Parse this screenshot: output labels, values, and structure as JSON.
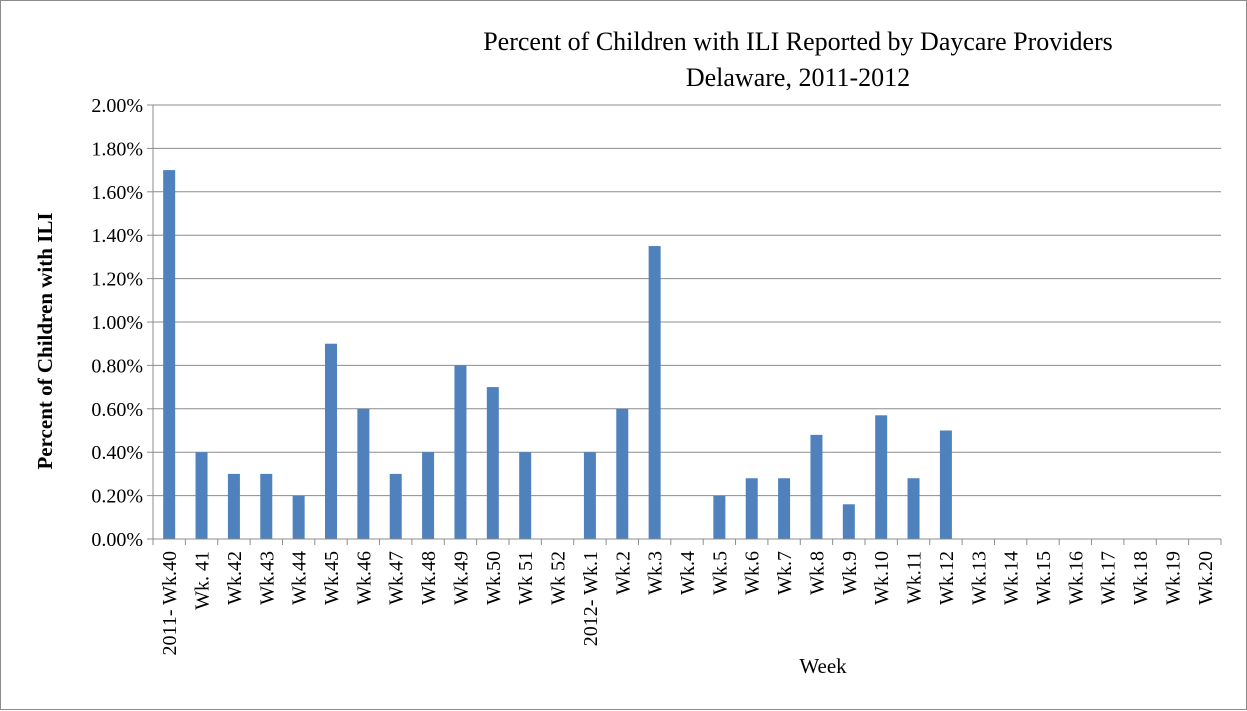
{
  "chart_data": {
    "type": "bar",
    "title": "Percent of Children with ILI Reported by Daycare Providers",
    "subtitle": "Delaware, 2011-2012",
    "xlabel": "Week",
    "ylabel": "Percent of Children  with ILI",
    "ylim": [
      0,
      2.0
    ],
    "ytick_step": 0.2,
    "value_format": "percent_2dp",
    "grid": true,
    "legend": "none",
    "bar_color": "#4f81bd",
    "gridline_color": "#8c8c8c",
    "categories": [
      "2011- Wk.40",
      "Wk. 41",
      "Wk.42",
      "Wk.43",
      "Wk.44",
      "Wk.45",
      "Wk.46",
      "Wk.47",
      "Wk.48",
      "Wk.49",
      "Wk.50",
      "Wk 51",
      "Wk 52",
      "2012- Wk.1",
      "Wk.2",
      "Wk.3",
      "Wk.4",
      "Wk.5",
      "Wk.6",
      "Wk.7",
      "Wk.8",
      "Wk.9",
      "Wk.10",
      "Wk.11",
      "Wk.12",
      "Wk.13",
      "Wk.14",
      "Wk.15",
      "Wk.16",
      "Wk.17",
      "Wk.18",
      "Wk.19",
      "Wk.20"
    ],
    "values": [
      1.7,
      0.4,
      0.3,
      0.3,
      0.2,
      0.9,
      0.6,
      0.3,
      0.4,
      0.8,
      0.7,
      0.4,
      0,
      0.4,
      0.6,
      1.35,
      0,
      0.2,
      0.28,
      0.28,
      0.48,
      0.16,
      0.57,
      0.28,
      0.5,
      0,
      0,
      0,
      0,
      0,
      0,
      0,
      0
    ]
  }
}
